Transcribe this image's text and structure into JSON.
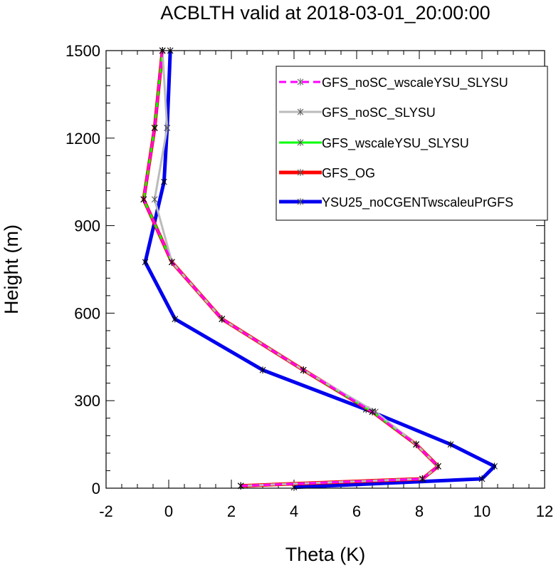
{
  "chart_data": {
    "type": "line",
    "title": "ACBLTH valid at 2018-03-01_20:00:00",
    "xlabel": "Theta (K)",
    "ylabel": "Height (m)",
    "xlim": [
      -2,
      12
    ],
    "ylim": [
      0,
      1500
    ],
    "xticks": [
      "-2",
      "0",
      "2",
      "4",
      "6",
      "8",
      "10",
      "12"
    ],
    "yticks": [
      "0",
      "300",
      "600",
      "900",
      "1200",
      "1500"
    ],
    "legend_position": "top-right",
    "grid": false,
    "series": [
      {
        "name": "GFS_noSC_wscaleYSU_SLYSU",
        "color": "#ff00ff",
        "style": "dashed",
        "x": [
          2.3,
          8.1,
          8.6,
          7.9,
          6.5,
          4.3,
          1.7,
          0.1,
          -0.8,
          -0.45,
          -0.2
        ],
        "y": [
          8,
          32,
          75,
          150,
          262,
          405,
          580,
          775,
          990,
          1235,
          1500
        ]
      },
      {
        "name": "GFS_noSC_SLYSU",
        "color": "#bbbbbb",
        "style": "solid",
        "x": [
          2.3,
          8.1,
          8.6,
          7.9,
          6.6,
          4.3,
          1.7,
          0.1,
          -0.45,
          -0.05,
          -0.2
        ],
        "y": [
          8,
          32,
          75,
          150,
          262,
          405,
          580,
          775,
          990,
          1235,
          1500
        ]
      },
      {
        "name": "GFS_wscaleYSU_SLYSU",
        "color": "#00ff00",
        "style": "solid",
        "x": [
          2.3,
          8.1,
          8.6,
          7.9,
          6.5,
          4.3,
          1.7,
          0.1,
          -0.8,
          -0.45,
          -0.2
        ],
        "y": [
          8,
          32,
          75,
          150,
          262,
          405,
          580,
          775,
          990,
          1235,
          1500
        ]
      },
      {
        "name": "GFS_OG",
        "color": "#ff0000",
        "style": "solid",
        "x": [
          2.3,
          8.1,
          8.6,
          7.9,
          6.5,
          4.3,
          1.7,
          0.1,
          -0.8,
          -0.45,
          -0.2
        ],
        "y": [
          8,
          32,
          75,
          150,
          262,
          405,
          580,
          775,
          990,
          1235,
          1500
        ]
      },
      {
        "name": "YSU25_noCGENTwscaleuPrGFS",
        "color": "#0000ee",
        "style": "solid",
        "x": [
          4.0,
          10.0,
          10.4,
          9.0,
          6.3,
          3.0,
          0.2,
          -0.75,
          -0.15,
          -0.05,
          0.05
        ],
        "y": [
          3,
          32,
          75,
          150,
          270,
          405,
          580,
          775,
          1050,
          1235,
          1500
        ]
      }
    ]
  }
}
